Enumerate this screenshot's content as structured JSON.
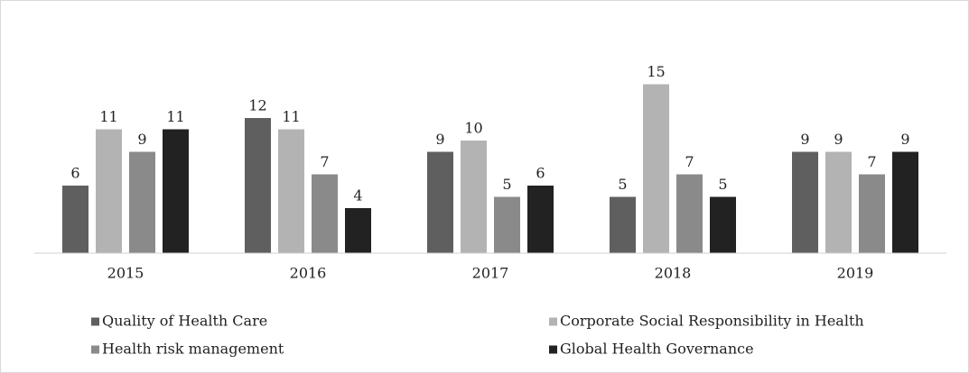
{
  "chart_data": {
    "type": "bar",
    "categories": [
      "2015",
      "2016",
      "2017",
      "2018",
      "2019"
    ],
    "series": [
      {
        "name": "Quality of Health Care",
        "color": "#5f5f5f",
        "values": [
          6,
          12,
          9,
          5,
          9
        ]
      },
      {
        "name": "Corporate Social Responsibility in Health",
        "color": "#b3b3b3",
        "values": [
          11,
          11,
          10,
          15,
          9
        ]
      },
      {
        "name": "Health risk management",
        "color": "#8a8a8a",
        "values": [
          9,
          7,
          5,
          7,
          7
        ]
      },
      {
        "name": "Global Health Governance",
        "color": "#222222",
        "values": [
          11,
          4,
          6,
          5,
          9
        ]
      }
    ],
    "ylim": [
      0,
      20
    ],
    "legend": "bottom"
  }
}
